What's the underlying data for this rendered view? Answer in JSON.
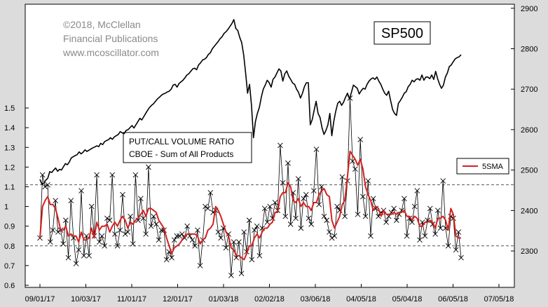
{
  "copyright": [
    "©2018, McClellan",
    "Financial Publications",
    "www.mcoscillator.com"
  ],
  "chart_title": "SP500",
  "ratio_label": [
    "PUT/CALL VOLUME RATIO",
    "CBOE - Sum of All Products"
  ],
  "colors": {
    "background": "#dcdcdc",
    "plot": "#ffffff",
    "sp500_line": "#000000",
    "ratio_line": "#000000",
    "sma_line": "#d42020",
    "ref_lines": "#555555"
  },
  "chart_data": {
    "type": "line",
    "x_tick_labels": [
      "09/01/17",
      "10/03/17",
      "11/01/17",
      "12/01/17",
      "01/03/18",
      "02/02/18",
      "03/06/18",
      "04/05/18",
      "05/04/18",
      "06/05/18",
      "07/05/18"
    ],
    "left_axis": {
      "ticks": [
        "0.6",
        "0.7",
        "0.8",
        "0.9",
        "1",
        "1.1",
        "1.2",
        "1.3",
        "1.4",
        "1.5"
      ],
      "range": [
        0.6,
        1.55
      ]
    },
    "right_axis": {
      "ticks": [
        "2300",
        "2400",
        "2500",
        "2600",
        "2700",
        "2800",
        "2900"
      ],
      "range": [
        2210,
        2910
      ]
    },
    "reference_lines": [
      0.8,
      1.11
    ],
    "legend": [
      "5SMA"
    ],
    "series": [
      {
        "name": "SP500",
        "axis": "right",
        "values": [
          2477,
          2465,
          2468,
          2475,
          2480,
          2496,
          2494,
          2500,
          2505,
          2497,
          2502,
          2500,
          2508,
          2516,
          2513,
          2520,
          2530,
          2533,
          2536,
          2538,
          2545,
          2540,
          2544,
          2550,
          2546,
          2549,
          2552,
          2555,
          2557,
          2560,
          2558,
          2566,
          2563,
          2570,
          2573,
          2575,
          2580,
          2576,
          2582,
          2585,
          2588,
          2595,
          2592,
          2590,
          2598,
          2600,
          2605,
          2610,
          2604,
          2612,
          2620,
          2628,
          2624,
          2632,
          2640,
          2648,
          2655,
          2660,
          2664,
          2670,
          2676,
          2680,
          2685,
          2688,
          2690,
          2693,
          2695,
          2700,
          2710,
          2712,
          2705,
          2714,
          2718,
          2722,
          2728,
          2735,
          2738,
          2744,
          2750,
          2752,
          2748,
          2760,
          2765,
          2772,
          2774,
          2778,
          2786,
          2790,
          2800,
          2806,
          2812,
          2818,
          2825,
          2830,
          2838,
          2842,
          2848,
          2855,
          2862,
          2872,
          2850,
          2845,
          2828,
          2815,
          2785,
          2740,
          2690,
          2712,
          2660,
          2580,
          2620,
          2640,
          2655,
          2680,
          2700,
          2710,
          2722,
          2716,
          2705,
          2724,
          2730,
          2740,
          2750,
          2745,
          2720,
          2738,
          2745,
          2732,
          2724,
          2715,
          2712,
          2700,
          2692,
          2678,
          2690,
          2706,
          2716,
          2716,
          2612,
          2625,
          2648,
          2670,
          2640,
          2630,
          2605,
          2588,
          2598,
          2612,
          2640,
          2585,
          2620,
          2645,
          2665,
          2670,
          2660,
          2668,
          2680,
          2690,
          2676,
          2692,
          2710,
          2706,
          2702,
          2688,
          2696,
          2702,
          2700,
          2712,
          2720,
          2725,
          2728,
          2724,
          2730,
          2720,
          2712,
          2700,
          2690,
          2685,
          2695,
          2672,
          2650,
          2640,
          2635,
          2665,
          2672,
          2680,
          2690,
          2694,
          2706,
          2712,
          2722,
          2718,
          2724,
          2726,
          2722,
          2735,
          2722,
          2730,
          2730,
          2726,
          2735,
          2724,
          2744,
          2726,
          2712,
          2702,
          2710,
          2730,
          2740,
          2756,
          2760,
          2768,
          2775,
          2778,
          2780,
          2785
        ]
      },
      {
        "name": "Put/Call Volume Ratio",
        "axis": "left",
        "values": [
          0.84,
          1.16,
          1.1,
          1.11,
          0.82,
          0.88,
          1.03,
          0.87,
          0.88,
          0.81,
          0.93,
          0.74,
          1.03,
          0.84,
          0.71,
          0.78,
          1.08,
          0.75,
          0.85,
          0.75,
          1.0,
          0.85,
          1.16,
          0.82,
          0.85,
          0.8,
          0.94,
          0.93,
          1.16,
          0.86,
          0.8,
          0.88,
          1.06,
          0.86,
          0.87,
          0.95,
          0.81,
          1.16,
          0.93,
          1.04,
          0.94,
          0.86,
          1.2,
          0.9,
          0.95,
          0.91,
          0.83,
          0.88,
          0.88,
          0.73,
          0.77,
          0.74,
          0.83,
          0.85,
          0.85,
          0.86,
          0.84,
          0.9,
          0.85,
          0.83,
          0.8,
          0.88,
          0.7,
          0.83,
          1.0,
          0.99,
          1.07,
          0.97,
          0.98,
          0.87,
          0.84,
          0.89,
          0.79,
          0.86,
          0.65,
          0.82,
          0.74,
          0.82,
          0.66,
          0.87,
          0.77,
          0.93,
          0.73,
          0.88,
          0.9,
          0.75,
          0.89,
          0.99,
          0.92,
          1.0,
          0.94,
          1.02,
          0.98,
          1.31,
          1.12,
          0.95,
          1.22,
          0.91,
          1.07,
          0.94,
          1.14,
          0.89,
          1.04,
          1.06,
          0.94,
          0.91,
          1.08,
          1.29,
          1.01,
          1.1,
          0.95,
          0.93,
          0.87,
          0.84,
          0.85,
          1.0,
          0.98,
          1.15,
          0.95,
          1.13,
          1.55,
          1.23,
          1.19,
          0.96,
          1.34,
          1.05,
          0.95,
          1.13,
          0.85,
          1.04,
          0.99,
          0.95,
          0.97,
          0.98,
          0.92,
          0.95,
          0.97,
          0.99,
          0.93,
          0.96,
          0.98,
          1.04,
          0.85,
          0.94,
          0.92,
          1.0,
          1.08,
          0.83,
          0.92,
          0.85,
          0.93,
          0.99,
          0.91,
          0.86,
          0.98,
          0.89,
          1.13,
          0.89,
          0.8,
          0.95,
          0.94,
          0.78,
          0.87,
          0.74
        ]
      },
      {
        "name": "5SMA",
        "axis": "left",
        "values": [
          0.84,
          1.0,
          1.03,
          1.05,
          1.01,
          1.01,
          0.99,
          0.94,
          0.88,
          0.88,
          0.9,
          0.85,
          0.86,
          0.85,
          0.85,
          0.82,
          0.87,
          0.83,
          0.83,
          0.84,
          0.89,
          0.84,
          0.92,
          0.88,
          0.9,
          0.9,
          0.91,
          0.87,
          0.9,
          0.92,
          0.9,
          0.93,
          0.95,
          0.93,
          0.89,
          0.92,
          0.91,
          0.93,
          0.94,
          0.96,
          0.98,
          0.95,
          0.99,
          0.99,
          0.98,
          0.97,
          0.93,
          0.91,
          0.89,
          0.84,
          0.8,
          0.76,
          0.79,
          0.8,
          0.81,
          0.83,
          0.85,
          0.86,
          0.86,
          0.86,
          0.86,
          0.85,
          0.81,
          0.83,
          0.84,
          0.88,
          0.89,
          0.91,
          1.0,
          0.98,
          0.95,
          0.91,
          0.87,
          0.85,
          0.79,
          0.78,
          0.75,
          0.75,
          0.74,
          0.73,
          0.76,
          0.8,
          0.8,
          0.84,
          0.86,
          0.84,
          0.87,
          0.89,
          0.89,
          0.91,
          0.92,
          0.97,
          0.97,
          1.05,
          1.07,
          1.07,
          1.12,
          1.1,
          1.03,
          1.02,
          1.04,
          1.0,
          1.02,
          1.0,
          1.0,
          0.98,
          1.02,
          1.02,
          1.06,
          1.08,
          1.09,
          1.06,
          1.05,
          0.93,
          0.89,
          0.92,
          0.95,
          1.01,
          1.03,
          1.15,
          1.28,
          1.26,
          1.24,
          1.21,
          1.24,
          1.19,
          1.1,
          1.06,
          1.03,
          0.98,
          1.0,
          0.99,
          0.95,
          0.98,
          0.96,
          0.96,
          0.96,
          0.97,
          0.96,
          0.97,
          0.97,
          0.98,
          0.95,
          0.95,
          0.93,
          0.95,
          0.94,
          0.9,
          0.9,
          0.92,
          0.92,
          0.93,
          0.92,
          0.89,
          0.94,
          0.94,
          0.95,
          0.93,
          0.88,
          0.99,
          0.96,
          0.85,
          0.84,
          0.84
        ]
      }
    ]
  }
}
